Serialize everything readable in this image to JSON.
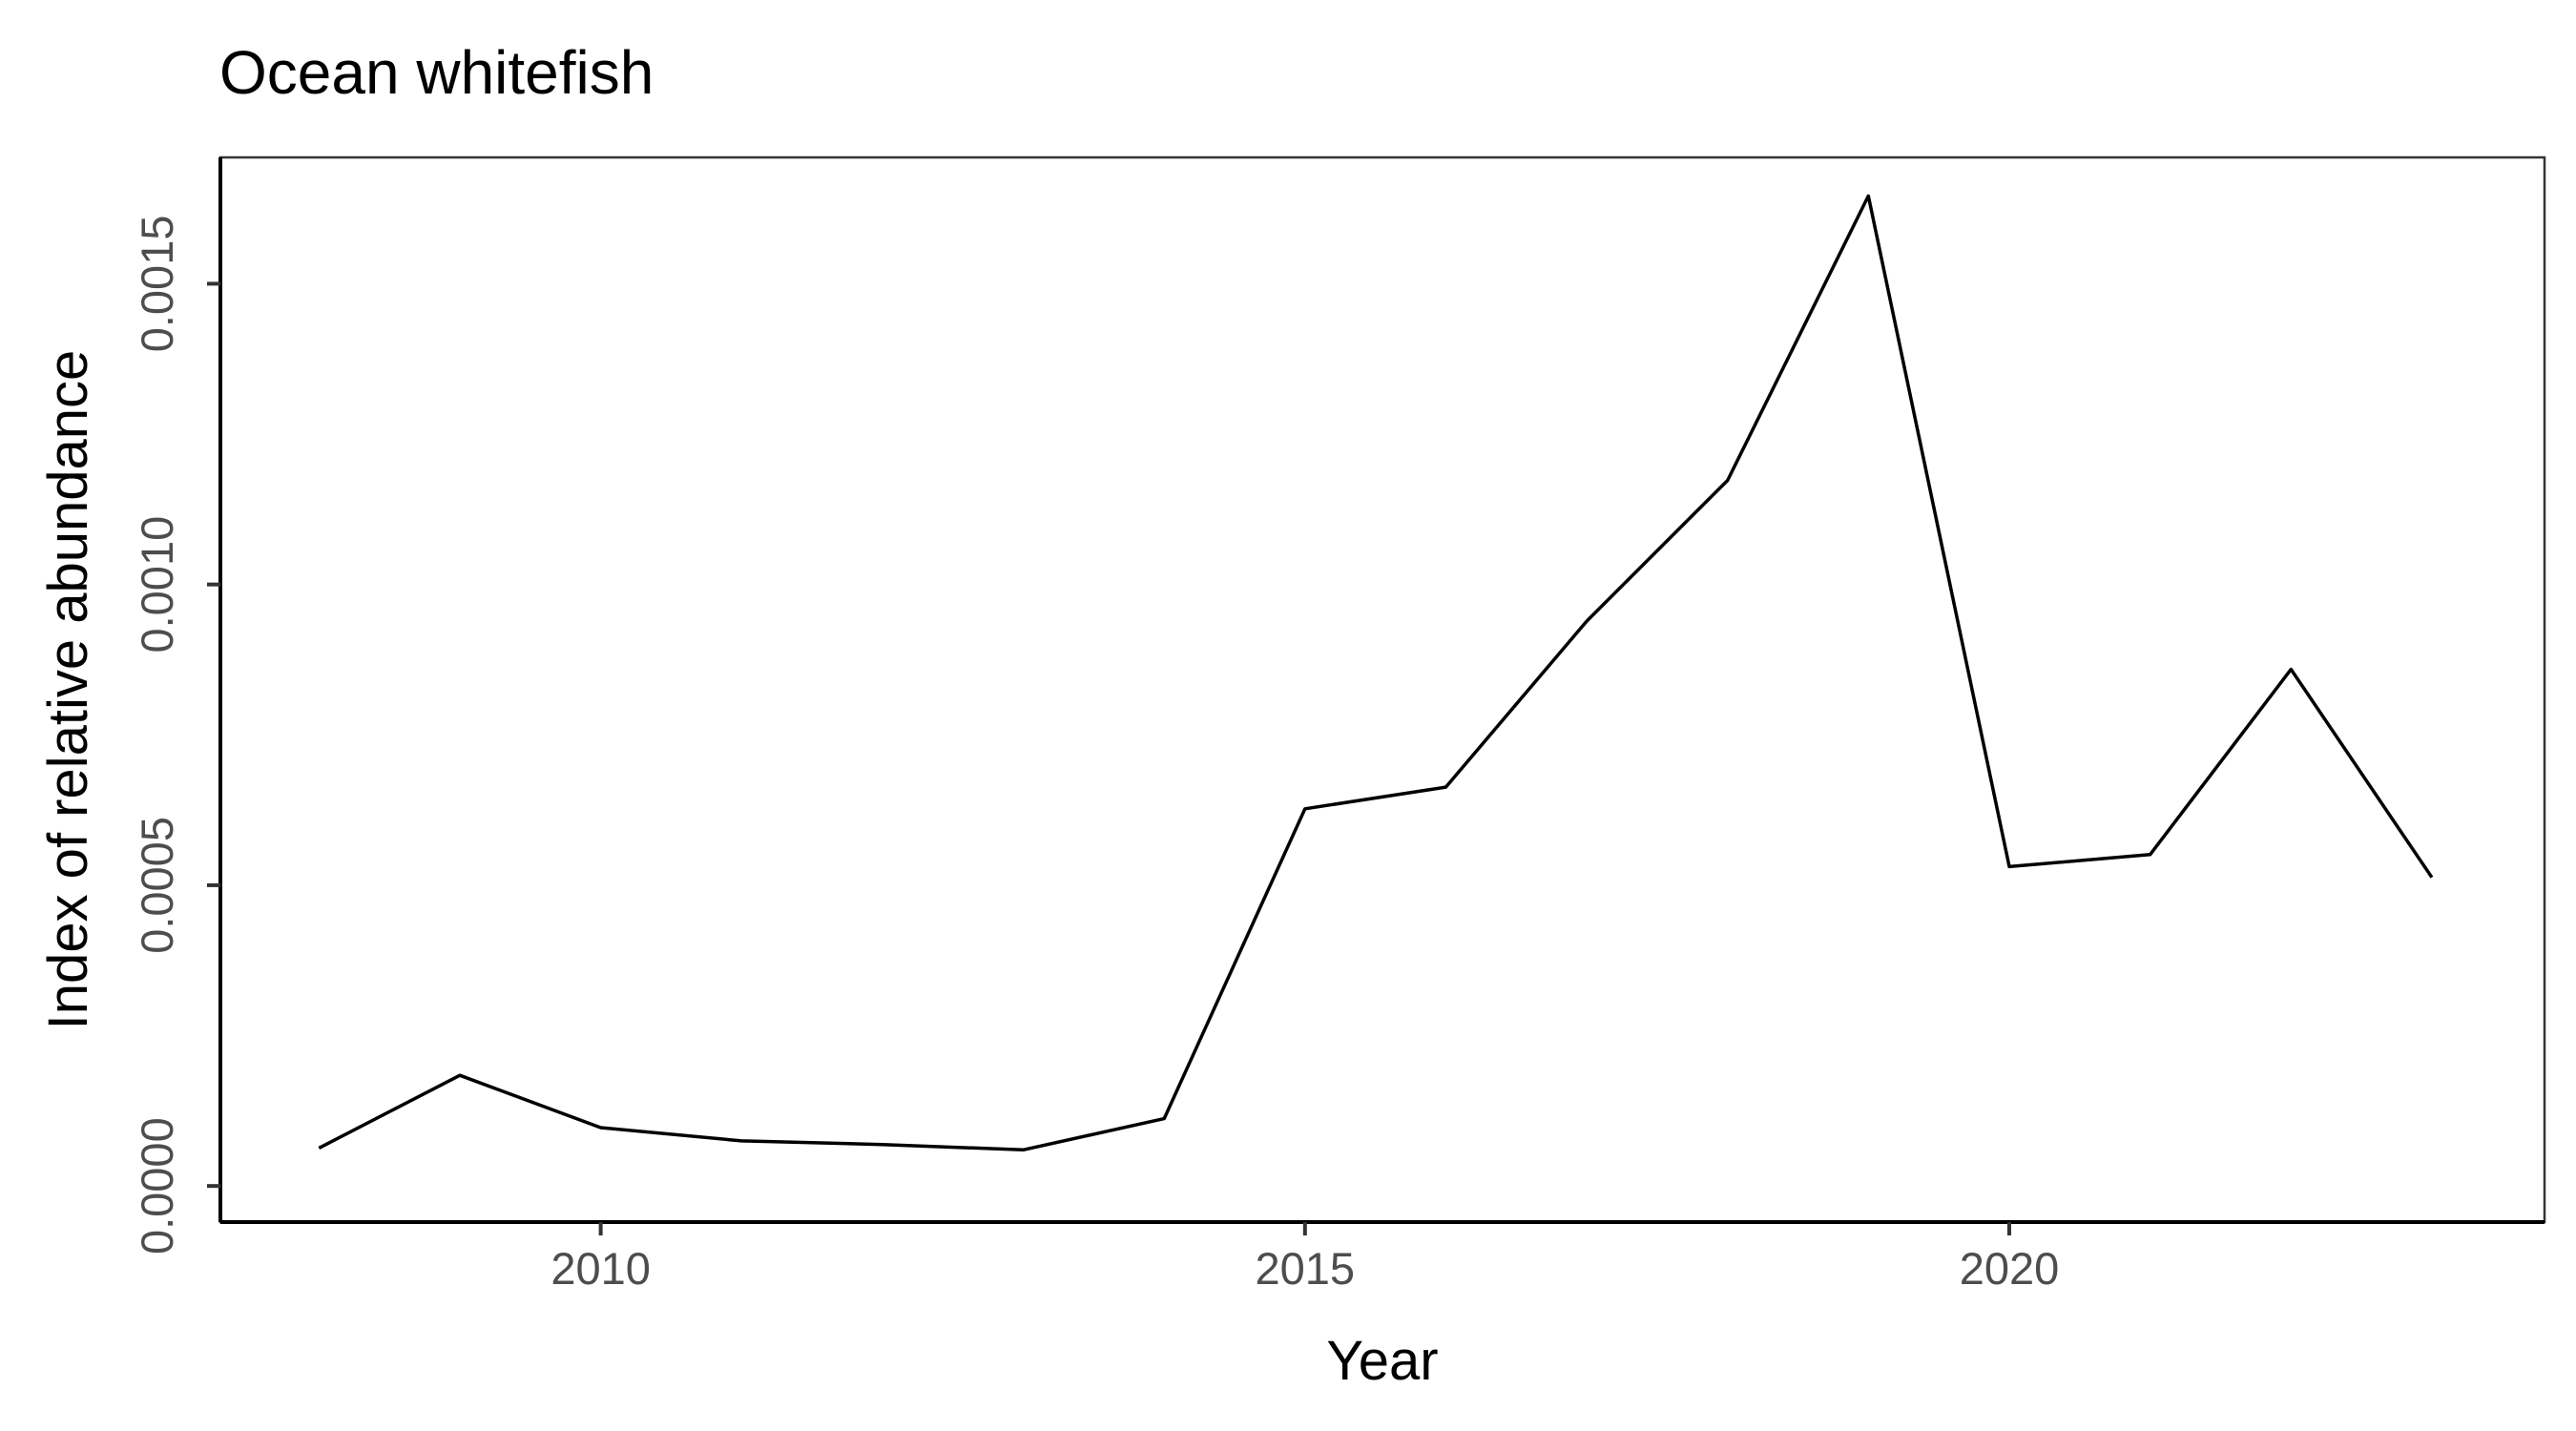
{
  "chart_data": {
    "type": "line",
    "title": "Ocean whitefish",
    "xlabel": "Year",
    "ylabel": "Index of relative abundance",
    "xlim": [
      2007.3,
      2023.8
    ],
    "ylim": [
      -6e-05,
      0.00171
    ],
    "x_ticks": [
      2010,
      2015,
      2020
    ],
    "x_tick_labels": [
      "2010",
      "2015",
      "2020"
    ],
    "y_ticks": [
      0,
      0.0005,
      0.001,
      0.0015
    ],
    "y_tick_labels": [
      "0.0000",
      "0.0005",
      "0.0010",
      "0.0015"
    ],
    "grid": false,
    "line_color": "#000000",
    "series": [
      {
        "x": [
          2008,
          2009,
          2010,
          2011,
          2012,
          2013,
          2014,
          2015,
          2016,
          2017,
          2018,
          2019,
          2020,
          2021,
          2022,
          2023
        ],
        "values": [
          6.3e-05,
          0.000184,
          9.7e-05,
          7.5e-05,
          6.9e-05,
          6e-05,
          0.000112,
          0.000627,
          0.000663,
          0.000939,
          0.001173,
          0.001646,
          0.000531,
          0.000551,
          0.000859,
          0.000513
        ]
      }
    ]
  }
}
